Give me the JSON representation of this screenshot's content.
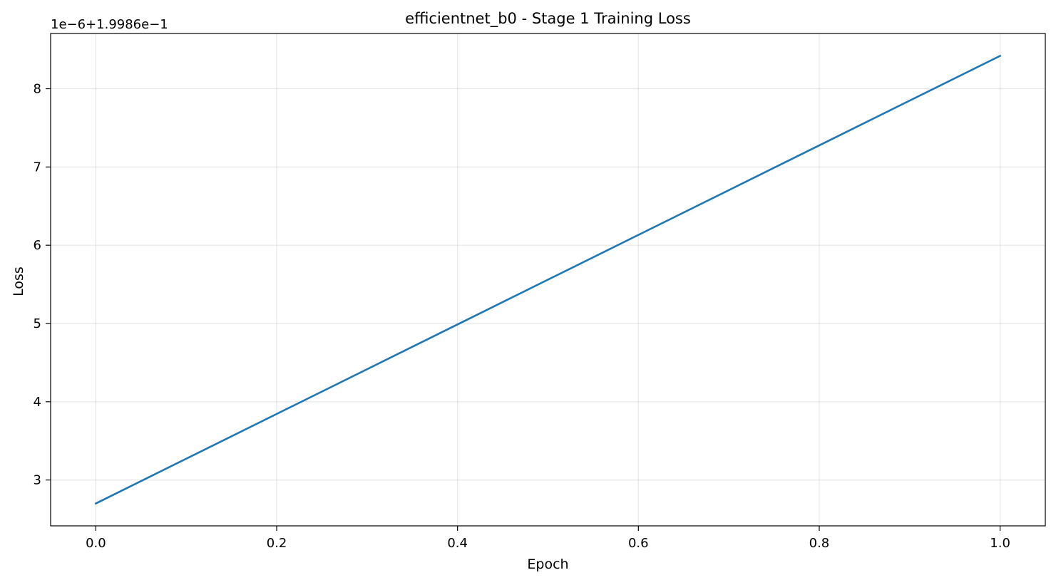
{
  "chart_data": {
    "type": "line",
    "title": "efficientnet_b0 - Stage 1 Training Loss",
    "xlabel": "Epoch",
    "ylabel": "Loss",
    "offset_label": "1e−6+1.9986e−1",
    "x": [
      0.0,
      1.0
    ],
    "series": [
      {
        "values": [
          2.7,
          8.42
        ],
        "color": "#1f77b4"
      }
    ],
    "xlim": [
      -0.05,
      1.05
    ],
    "ylim": [
      2.414,
      8.706
    ],
    "xticks": [
      0.0,
      0.2,
      0.4,
      0.6,
      0.8,
      1.0
    ],
    "xtick_labels": [
      "0.0",
      "0.2",
      "0.4",
      "0.6",
      "0.8",
      "1.0"
    ],
    "yticks": [
      3,
      4,
      5,
      6,
      7,
      8
    ],
    "ytick_labels": [
      "3",
      "4",
      "5",
      "6",
      "7",
      "8"
    ],
    "grid": true
  }
}
